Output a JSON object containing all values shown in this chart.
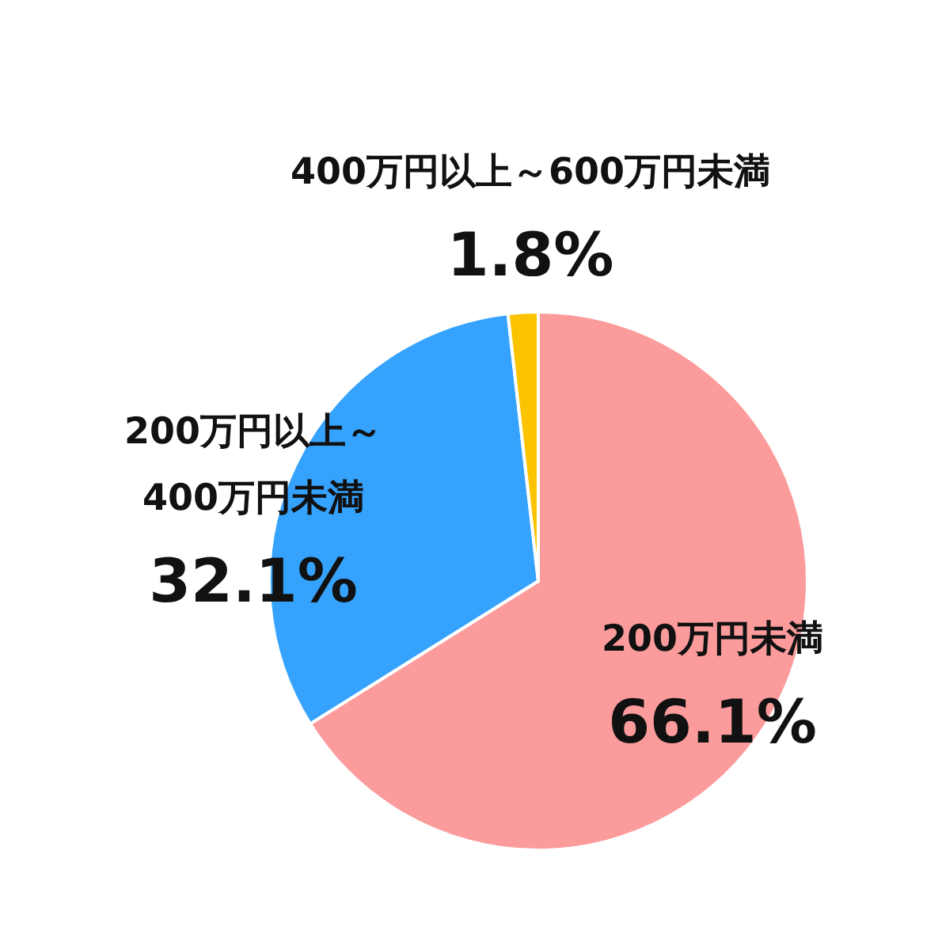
{
  "chart_data": {
    "type": "pie",
    "categories": [
      "200万円未満",
      "200万円以上～\n400万円未満",
      "400万円以上～600万円未満"
    ],
    "values": [
      66.1,
      32.1,
      1.8
    ],
    "value_labels": [
      "66.1%",
      "32.1%",
      "1.8%"
    ],
    "colors": [
      "#fc9b9b",
      "#35a3fd",
      "#fcc300"
    ],
    "legend": false
  }
}
